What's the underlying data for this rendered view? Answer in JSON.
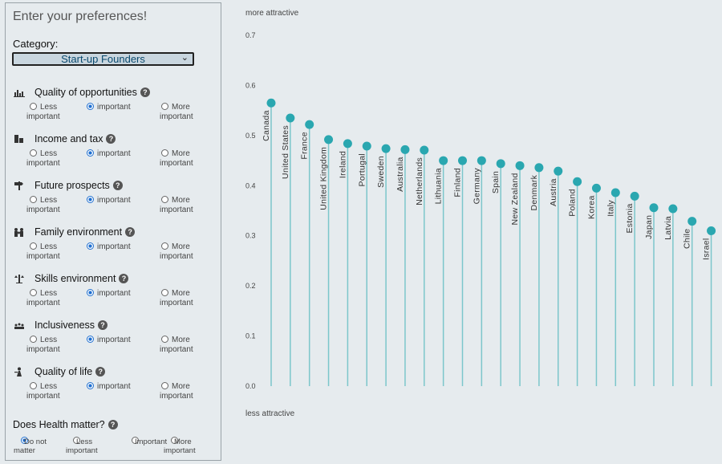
{
  "panel": {
    "title": "Enter your preferences!",
    "category_label": "Category:",
    "category_value": "Start-up Founders",
    "options": [
      "Less important",
      "important",
      "More important"
    ],
    "preferences": [
      {
        "name": "Quality of opportunities",
        "icon": "chart-icon",
        "selected": 1
      },
      {
        "name": "Income and tax",
        "icon": "money-icon",
        "selected": 1
      },
      {
        "name": "Future prospects",
        "icon": "signpost-icon",
        "selected": 1
      },
      {
        "name": "Family environment",
        "icon": "family-icon",
        "selected": 1
      },
      {
        "name": "Skills environment",
        "icon": "scales-icon",
        "selected": 1
      },
      {
        "name": "Inclusiveness",
        "icon": "people-icon",
        "selected": 1
      },
      {
        "name": "Quality of life",
        "icon": "person-icon",
        "selected": 1
      }
    ],
    "health": {
      "question": "Does Health matter?",
      "options": [
        "Do not matter",
        "Less important",
        "Important",
        "More important"
      ],
      "selected": 0
    }
  },
  "chart_data": {
    "type": "lollipop",
    "top_label": "more attractive",
    "bottom_label": "less attractive",
    "ylim": [
      0,
      0.7
    ],
    "yticks": [
      0.0,
      0.1,
      0.2,
      0.3,
      0.4,
      0.5,
      0.6,
      0.7
    ],
    "color": "#2aa7b0",
    "stem_color": "#7cc6cb",
    "categories": [
      "Canada",
      "United States",
      "France",
      "United Kingdom",
      "Ireland",
      "Portugal",
      "Sweden",
      "Australia",
      "Netherlands",
      "Lithuania",
      "Finland",
      "Germany",
      "Spain",
      "New Zealand",
      "Denmark",
      "Austria",
      "Poland",
      "Korea",
      "Italy",
      "Estonia",
      "Japan",
      "Latvia",
      "Chile",
      "Israel"
    ],
    "values": [
      0.565,
      0.535,
      0.522,
      0.492,
      0.484,
      0.479,
      0.474,
      0.472,
      0.471,
      0.45,
      0.45,
      0.45,
      0.444,
      0.44,
      0.436,
      0.429,
      0.408,
      0.395,
      0.386,
      0.379,
      0.356,
      0.354,
      0.329,
      0.31
    ]
  }
}
